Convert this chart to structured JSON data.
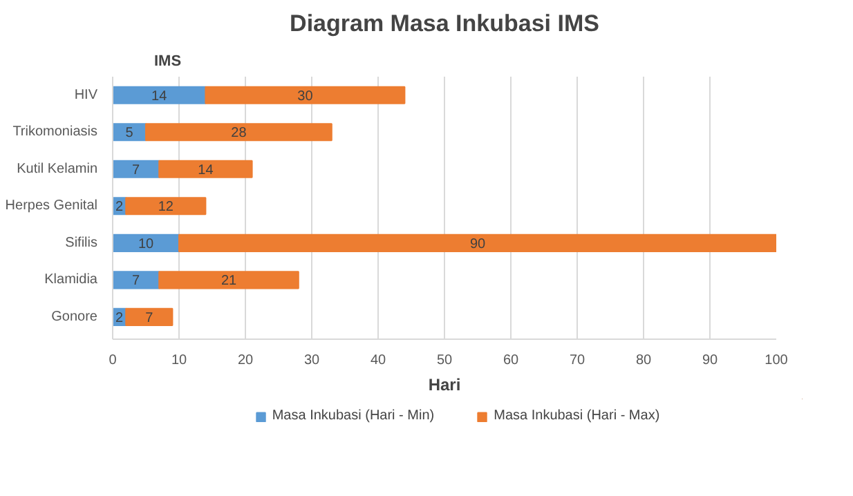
{
  "chart_data": {
    "type": "bar",
    "orientation": "horizontal",
    "stacked": true,
    "title": "Diagram Masa Inkubasi IMS",
    "ylabel": "IMS",
    "xlabel": "Hari",
    "categories": [
      "HIV",
      "Trikomoniasis",
      "Kutil Kelamin",
      "Herpes Genital",
      "Sifilis",
      "Klamidia",
      "Gonore"
    ],
    "series": [
      {
        "name": "Masa Inkubasi (Hari - Min)",
        "color": "#5b9bd5",
        "values": [
          14,
          5,
          7,
          2,
          10,
          7,
          2
        ]
      },
      {
        "name": "Masa Inkubasi (Hari - Max)",
        "color": "#ed7d31",
        "values": [
          30,
          28,
          14,
          12,
          90,
          21,
          7
        ]
      }
    ],
    "xlim": [
      0,
      100
    ],
    "xticks": [
      0,
      10,
      20,
      30,
      40,
      50,
      60,
      70,
      80,
      90,
      100
    ],
    "data_labels": true,
    "grid": "x",
    "legend": "bottom"
  }
}
